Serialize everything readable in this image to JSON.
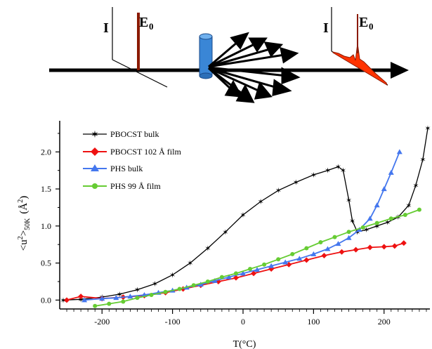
{
  "schematic": {
    "left_axis_label": "I",
    "left_peak_label": "E",
    "left_peak_sub": "0",
    "right_axis_label": "I",
    "right_peak_label": "E",
    "right_peak_sub": "0",
    "colors": {
      "beam": "#000000",
      "elastic_peak": "#8b1a00",
      "sample": "#3a86d6",
      "inelastic": "#ff3300"
    }
  },
  "chart_data": {
    "type": "line",
    "title": "",
    "xlabel": "T(°C)",
    "ylabel_main": "<u",
    "ylabel_sup": "2",
    "ylabel_sub": ">",
    "ylabel_sub2": "50K",
    "ylabel_unit": "(Å",
    "ylabel_unit_sup": "2",
    "ylabel_unit_close": ")",
    "xlim": [
      -260,
      265
    ],
    "ylim": [
      -0.12,
      2.42
    ],
    "x_ticks": [
      -200,
      -100,
      0,
      100,
      200
    ],
    "x_tick_labels": [
      "-200",
      "-100",
      "0",
      "100",
      "200"
    ],
    "y_ticks": [
      0.0,
      0.5,
      1.0,
      1.5,
      2.0
    ],
    "y_tick_labels": [
      "0.0",
      "0.5",
      "1.0",
      "1.5",
      "2.0"
    ],
    "legend_position": "top-left",
    "series": [
      {
        "name": "PBOCST bulk",
        "color": "#000000",
        "marker": "star",
        "x": [
          -255,
          -230,
          -200,
          -175,
          -150,
          -125,
          -100,
          -75,
          -50,
          -25,
          0,
          25,
          50,
          75,
          100,
          120,
          135,
          142,
          150,
          155,
          162,
          175,
          190,
          205,
          220,
          235,
          245,
          255,
          262
        ],
        "y": [
          0.0,
          0.01,
          0.04,
          0.08,
          0.14,
          0.22,
          0.34,
          0.5,
          0.7,
          0.92,
          1.15,
          1.33,
          1.48,
          1.59,
          1.69,
          1.75,
          1.8,
          1.75,
          1.35,
          1.07,
          0.92,
          0.95,
          1.0,
          1.05,
          1.12,
          1.28,
          1.55,
          1.9,
          2.32
        ]
      },
      {
        "name": "PBOCST 102 Å film",
        "color": "#ee1111",
        "marker": "diamond",
        "x": [
          -250,
          -230,
          -200,
          -170,
          -140,
          -110,
          -85,
          -60,
          -35,
          -10,
          15,
          40,
          65,
          90,
          115,
          140,
          160,
          180,
          200,
          215,
          228
        ],
        "y": [
          0.0,
          0.05,
          0.02,
          0.04,
          0.06,
          0.1,
          0.15,
          0.2,
          0.25,
          0.3,
          0.36,
          0.42,
          0.48,
          0.54,
          0.6,
          0.65,
          0.68,
          0.71,
          0.72,
          0.73,
          0.77
        ]
      },
      {
        "name": "PHS bulk",
        "color": "#4477ee",
        "marker": "triangle",
        "x": [
          -225,
          -200,
          -180,
          -160,
          -140,
          -120,
          -100,
          -80,
          -60,
          -40,
          -20,
          0,
          20,
          40,
          60,
          80,
          100,
          120,
          135,
          150,
          165,
          180,
          190,
          200,
          210,
          222
        ],
        "y": [
          0.0,
          0.02,
          0.03,
          0.05,
          0.07,
          0.1,
          0.13,
          0.17,
          0.21,
          0.26,
          0.31,
          0.36,
          0.41,
          0.46,
          0.51,
          0.56,
          0.62,
          0.69,
          0.76,
          0.84,
          0.95,
          1.1,
          1.28,
          1.5,
          1.72,
          2.0
        ]
      },
      {
        "name": "PHS 99 Å film",
        "color": "#66cc33",
        "marker": "circle",
        "x": [
          -210,
          -190,
          -170,
          -150,
          -130,
          -110,
          -90,
          -70,
          -50,
          -30,
          -10,
          10,
          30,
          50,
          70,
          90,
          110,
          130,
          150,
          170,
          190,
          210,
          230,
          250
        ],
        "y": [
          -0.08,
          -0.05,
          -0.02,
          0.03,
          0.07,
          0.11,
          0.15,
          0.2,
          0.25,
          0.31,
          0.36,
          0.42,
          0.48,
          0.55,
          0.62,
          0.7,
          0.78,
          0.85,
          0.92,
          0.98,
          1.04,
          1.1,
          1.15,
          1.22
        ]
      }
    ]
  }
}
